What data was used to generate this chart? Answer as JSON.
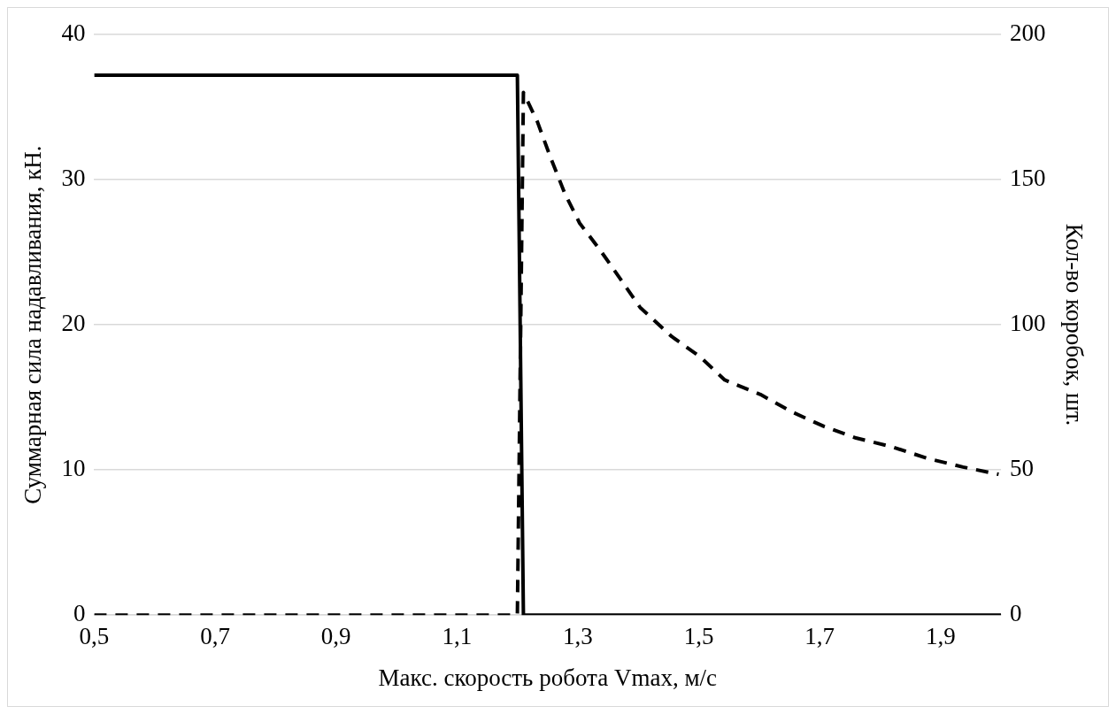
{
  "chart_data": {
    "type": "line",
    "xlabel": "Макс. скорость робота Vmax, м/с",
    "ylabel": "Суммарная сила надавливания, кН.",
    "y2label": "Кол-во коробок, шт.",
    "xlim": [
      0.5,
      2.0
    ],
    "xticks": [
      {
        "value": 0.5,
        "label": "0,5"
      },
      {
        "value": 0.7,
        "label": "0,7"
      },
      {
        "value": 0.9,
        "label": "0,9"
      },
      {
        "value": 1.1,
        "label": "1,1"
      },
      {
        "value": 1.3,
        "label": "1,3"
      },
      {
        "value": 1.5,
        "label": "1,5"
      },
      {
        "value": 1.7,
        "label": "1,7"
      },
      {
        "value": 1.9,
        "label": "1,9"
      }
    ],
    "ylim": [
      0,
      40
    ],
    "yticks": [
      0,
      10,
      20,
      30,
      40
    ],
    "y2lim": [
      0,
      200
    ],
    "y2ticks": [
      0,
      50,
      100,
      150,
      200
    ],
    "grid": "y",
    "legend": false,
    "marker": "none",
    "series": [
      {
        "color": "#000000",
        "line_style": "solid",
        "x": [
          0.5,
          1.2,
          1.21,
          2.0
        ],
        "values": [
          37.2,
          37.2,
          0,
          0
        ]
      },
      {
        "color": "#000000",
        "line_style": "dashed",
        "axis": "y2",
        "x": [
          0.5,
          1.2,
          1.21,
          1.233,
          1.256,
          1.279,
          1.303,
          1.336,
          1.373,
          1.403,
          1.455,
          1.502,
          1.543,
          1.602,
          1.654,
          1.707,
          1.76,
          1.819,
          1.878,
          1.937,
          1.996
        ],
        "values": [
          0,
          0,
          180,
          170,
          157,
          145,
          135,
          126,
          115,
          106,
          96,
          89,
          81,
          76,
          70,
          65,
          61,
          58,
          54,
          51,
          48.5
        ]
      }
    ]
  }
}
